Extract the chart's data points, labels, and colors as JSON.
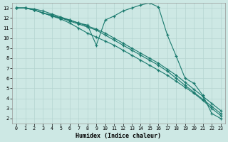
{
  "xlabel": "Humidex (Indice chaleur)",
  "background_color": "#cde8e4",
  "grid_color": "#b5d5d0",
  "line_color": "#1a7a6e",
  "xlim": [
    -0.5,
    23.5
  ],
  "ylim": [
    1.5,
    13.5
  ],
  "xticks": [
    0,
    1,
    2,
    3,
    4,
    5,
    6,
    7,
    8,
    9,
    10,
    11,
    12,
    13,
    14,
    15,
    16,
    17,
    18,
    19,
    20,
    21,
    22,
    23
  ],
  "yticks": [
    2,
    3,
    4,
    5,
    6,
    7,
    8,
    9,
    10,
    11,
    12,
    13
  ],
  "series": [
    {
      "x": [
        0,
        1,
        2,
        3,
        4,
        5,
        6,
        7,
        8,
        9,
        10,
        11,
        12,
        13,
        14,
        15,
        16,
        17,
        18,
        19,
        20,
        21,
        22,
        23
      ],
      "y": [
        13,
        13,
        12.8,
        12.5,
        12.2,
        12.0,
        11.8,
        11.5,
        11.3,
        9.3,
        11.8,
        12.2,
        12.7,
        13.0,
        13.3,
        13.5,
        13.1,
        10.3,
        8.2,
        6.0,
        5.5,
        4.3,
        2.5,
        2.0
      ]
    },
    {
      "x": [
        0,
        1,
        2,
        3,
        4,
        5,
        6,
        7,
        8,
        9,
        10,
        11,
        12,
        13,
        14,
        15,
        16,
        17,
        18,
        19,
        20,
        21,
        22,
        23
      ],
      "y": [
        13,
        13,
        12.8,
        12.5,
        12.2,
        11.9,
        11.5,
        11.0,
        10.5,
        10.1,
        9.7,
        9.3,
        8.8,
        8.3,
        7.8,
        7.3,
        6.8,
        6.3,
        5.7,
        5.1,
        4.5,
        3.8,
        3.0,
        2.3
      ]
    },
    {
      "x": [
        0,
        1,
        2,
        3,
        4,
        5,
        6,
        7,
        8,
        9,
        10,
        11,
        12,
        13,
        14,
        15,
        16,
        17,
        18,
        19,
        20,
        21,
        22,
        23
      ],
      "y": [
        13,
        13,
        12.8,
        12.5,
        12.3,
        12.0,
        11.7,
        11.4,
        11.1,
        10.8,
        10.3,
        9.8,
        9.3,
        8.8,
        8.3,
        7.8,
        7.3,
        6.7,
        6.0,
        5.3,
        4.6,
        3.9,
        3.2,
        2.5
      ]
    },
    {
      "x": [
        0,
        1,
        2,
        3,
        4,
        5,
        6,
        7,
        8,
        9,
        10,
        11,
        12,
        13,
        14,
        15,
        16,
        17,
        18,
        19,
        20,
        21,
        22,
        23
      ],
      "y": [
        13,
        13,
        12.9,
        12.7,
        12.4,
        12.1,
        11.8,
        11.5,
        11.2,
        10.9,
        10.5,
        10.0,
        9.5,
        9.0,
        8.5,
        8.0,
        7.5,
        6.9,
        6.3,
        5.6,
        4.9,
        4.2,
        3.5,
        2.8
      ]
    }
  ]
}
